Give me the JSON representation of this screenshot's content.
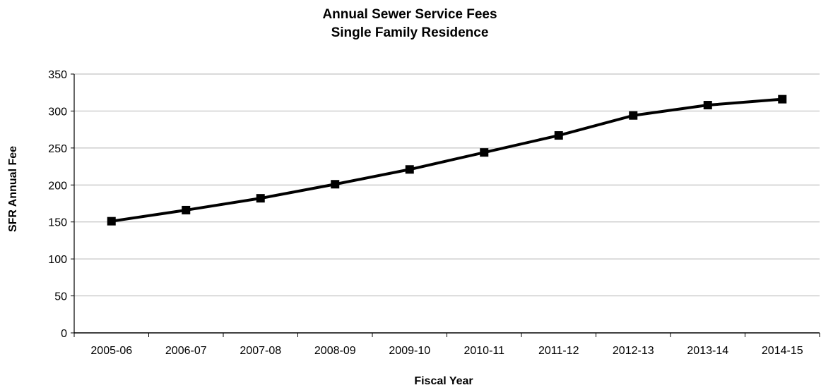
{
  "chart_data": {
    "type": "line",
    "title": "Annual Sewer Service Fees",
    "subtitle": "Single Family Residence",
    "xlabel": "Fiscal Year",
    "ylabel": "SFR Annual Fee",
    "categories": [
      "2005-06",
      "2006-07",
      "2007-08",
      "2008-09",
      "2009-10",
      "2010-11",
      "2011-12",
      "2012-13",
      "2013-14",
      "2014-15"
    ],
    "series": [
      {
        "values": [
          151,
          166,
          182,
          201,
          221,
          244,
          267,
          294,
          308,
          316
        ],
        "color": "#000000",
        "marker": "square"
      }
    ],
    "ylim": [
      0,
      350
    ],
    "yticks": [
      0,
      50,
      100,
      150,
      200,
      250,
      300,
      350
    ],
    "grid": true,
    "gridline_color": "#b4b4b4",
    "axis_color": "#000000",
    "legend": "none"
  }
}
